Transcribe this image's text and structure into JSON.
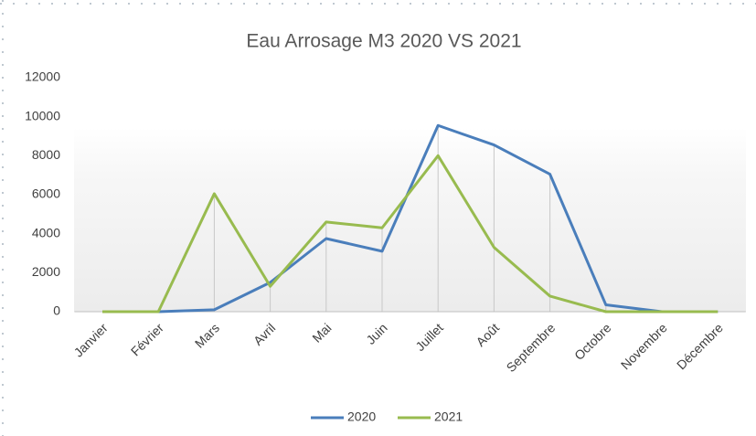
{
  "chart_data": {
    "type": "line",
    "title": "Eau Arrosage  M3 2020 VS 2021",
    "categories": [
      "Janvier",
      "Février",
      "Mars",
      "Avril",
      "Mai",
      "Juin",
      "Juillet",
      "Août",
      "Septembre",
      "Octobre",
      "Novembre",
      "Décembre"
    ],
    "series": [
      {
        "name": "2020",
        "color": "#4a7ebb",
        "values": [
          0,
          0,
          100,
          1500,
          3750,
          3100,
          9550,
          8550,
          7050,
          350,
          0,
          0
        ]
      },
      {
        "name": "2021",
        "color": "#98bb4f",
        "values": [
          0,
          0,
          6050,
          1300,
          4600,
          4300,
          8000,
          3300,
          800,
          0,
          0,
          0
        ]
      }
    ],
    "ylim": [
      0,
      12000
    ],
    "yticks": [
      0,
      2000,
      4000,
      6000,
      8000,
      10000,
      12000
    ],
    "grid": false,
    "drop_lines": true,
    "legend": "bottom"
  }
}
